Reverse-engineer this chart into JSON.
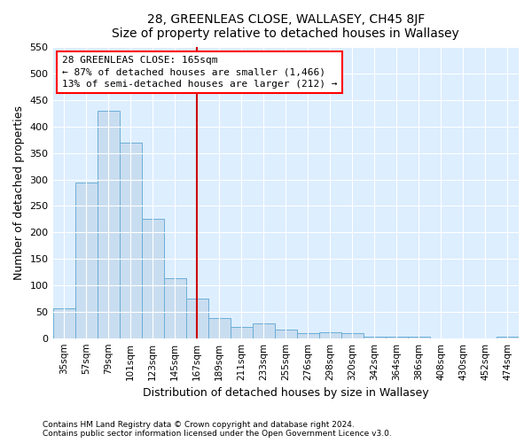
{
  "title": "28, GREENLEAS CLOSE, WALLASEY, CH45 8JF",
  "subtitle": "Size of property relative to detached houses in Wallasey",
  "xlabel": "Distribution of detached houses by size in Wallasey",
  "ylabel": "Number of detached properties",
  "bar_labels": [
    "35sqm",
    "57sqm",
    "79sqm",
    "101sqm",
    "123sqm",
    "145sqm",
    "167sqm",
    "189sqm",
    "211sqm",
    "233sqm",
    "255sqm",
    "276sqm",
    "298sqm",
    "320sqm",
    "342sqm",
    "364sqm",
    "386sqm",
    "408sqm",
    "430sqm",
    "452sqm",
    "474sqm"
  ],
  "bar_values": [
    57,
    295,
    430,
    370,
    225,
    113,
    75,
    38,
    22,
    28,
    17,
    9,
    11,
    9,
    2,
    2,
    2,
    0,
    0,
    0,
    3
  ],
  "bar_color": "#c9ddf0",
  "bar_edge_color": "#6aaed6",
  "property_line_idx": 6,
  "annotation_title": "28 GREENLEAS CLOSE: 165sqm",
  "annotation_line1": "← 87% of detached houses are smaller (1,466)",
  "annotation_line2": "13% of semi-detached houses are larger (212) →",
  "ylim": [
    0,
    550
  ],
  "yticks": [
    0,
    50,
    100,
    150,
    200,
    250,
    300,
    350,
    400,
    450,
    500,
    550
  ],
  "footer1": "Contains HM Land Registry data © Crown copyright and database right 2024.",
  "footer2": "Contains public sector information licensed under the Open Government Licence v3.0.",
  "fig_bg_color": "#ffffff",
  "plot_bg_color": "#ddeeff"
}
